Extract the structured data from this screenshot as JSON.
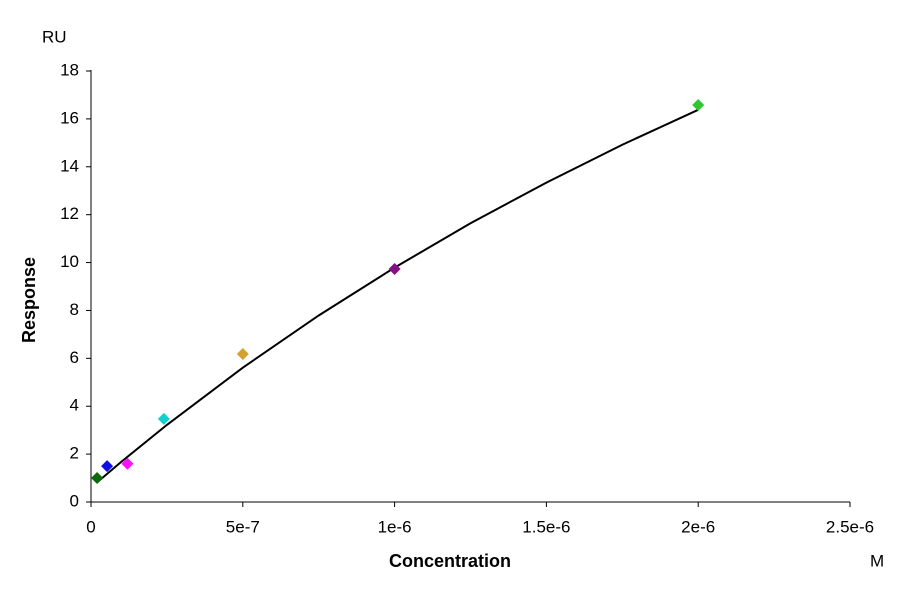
{
  "chart_data": {
    "type": "scatter",
    "x_unit": "M",
    "y_unit": "RU",
    "xlabel": "Concentration",
    "ylabel": "Response",
    "xlim": [
      0,
      2.5e-06
    ],
    "ylim": [
      0,
      18
    ],
    "xticks": [
      0,
      {
        "value": 5e-07,
        "label": "5e-7"
      },
      {
        "value": 1e-06,
        "label": "1e-6"
      },
      {
        "value": 1.5e-06,
        "label": "1.5e-6"
      },
      {
        "value": 2e-06,
        "label": "2e-6"
      },
      {
        "value": 2.5e-06,
        "label": "2.5e-6"
      }
    ],
    "yticks": [
      0,
      2,
      4,
      6,
      8,
      10,
      12,
      14,
      16,
      18
    ],
    "grid": false,
    "points": {
      "x": [
        2e-08,
        5.3e-08,
        1.2e-07,
        2.4e-07,
        5e-07,
        1e-06,
        2e-06
      ],
      "values": [
        1.0,
        1.5,
        1.6,
        3.47,
        6.18,
        9.73,
        16.58
      ],
      "colors": [
        "#0b6b0b",
        "#1010e0",
        "#ff10ff",
        "#10d0d0",
        "#d4a030",
        "#851085",
        "#30c830"
      ]
    },
    "fit": {
      "color": "#000000",
      "x": [
        2e-08,
        1e-07,
        2.5e-07,
        5e-07,
        7.5e-07,
        1e-06,
        1.25e-06,
        1.5e-06,
        1.75e-06,
        2e-06
      ],
      "values": [
        0.82,
        1.68,
        3.22,
        5.61,
        7.79,
        9.79,
        11.64,
        13.34,
        14.92,
        16.38
      ]
    }
  }
}
